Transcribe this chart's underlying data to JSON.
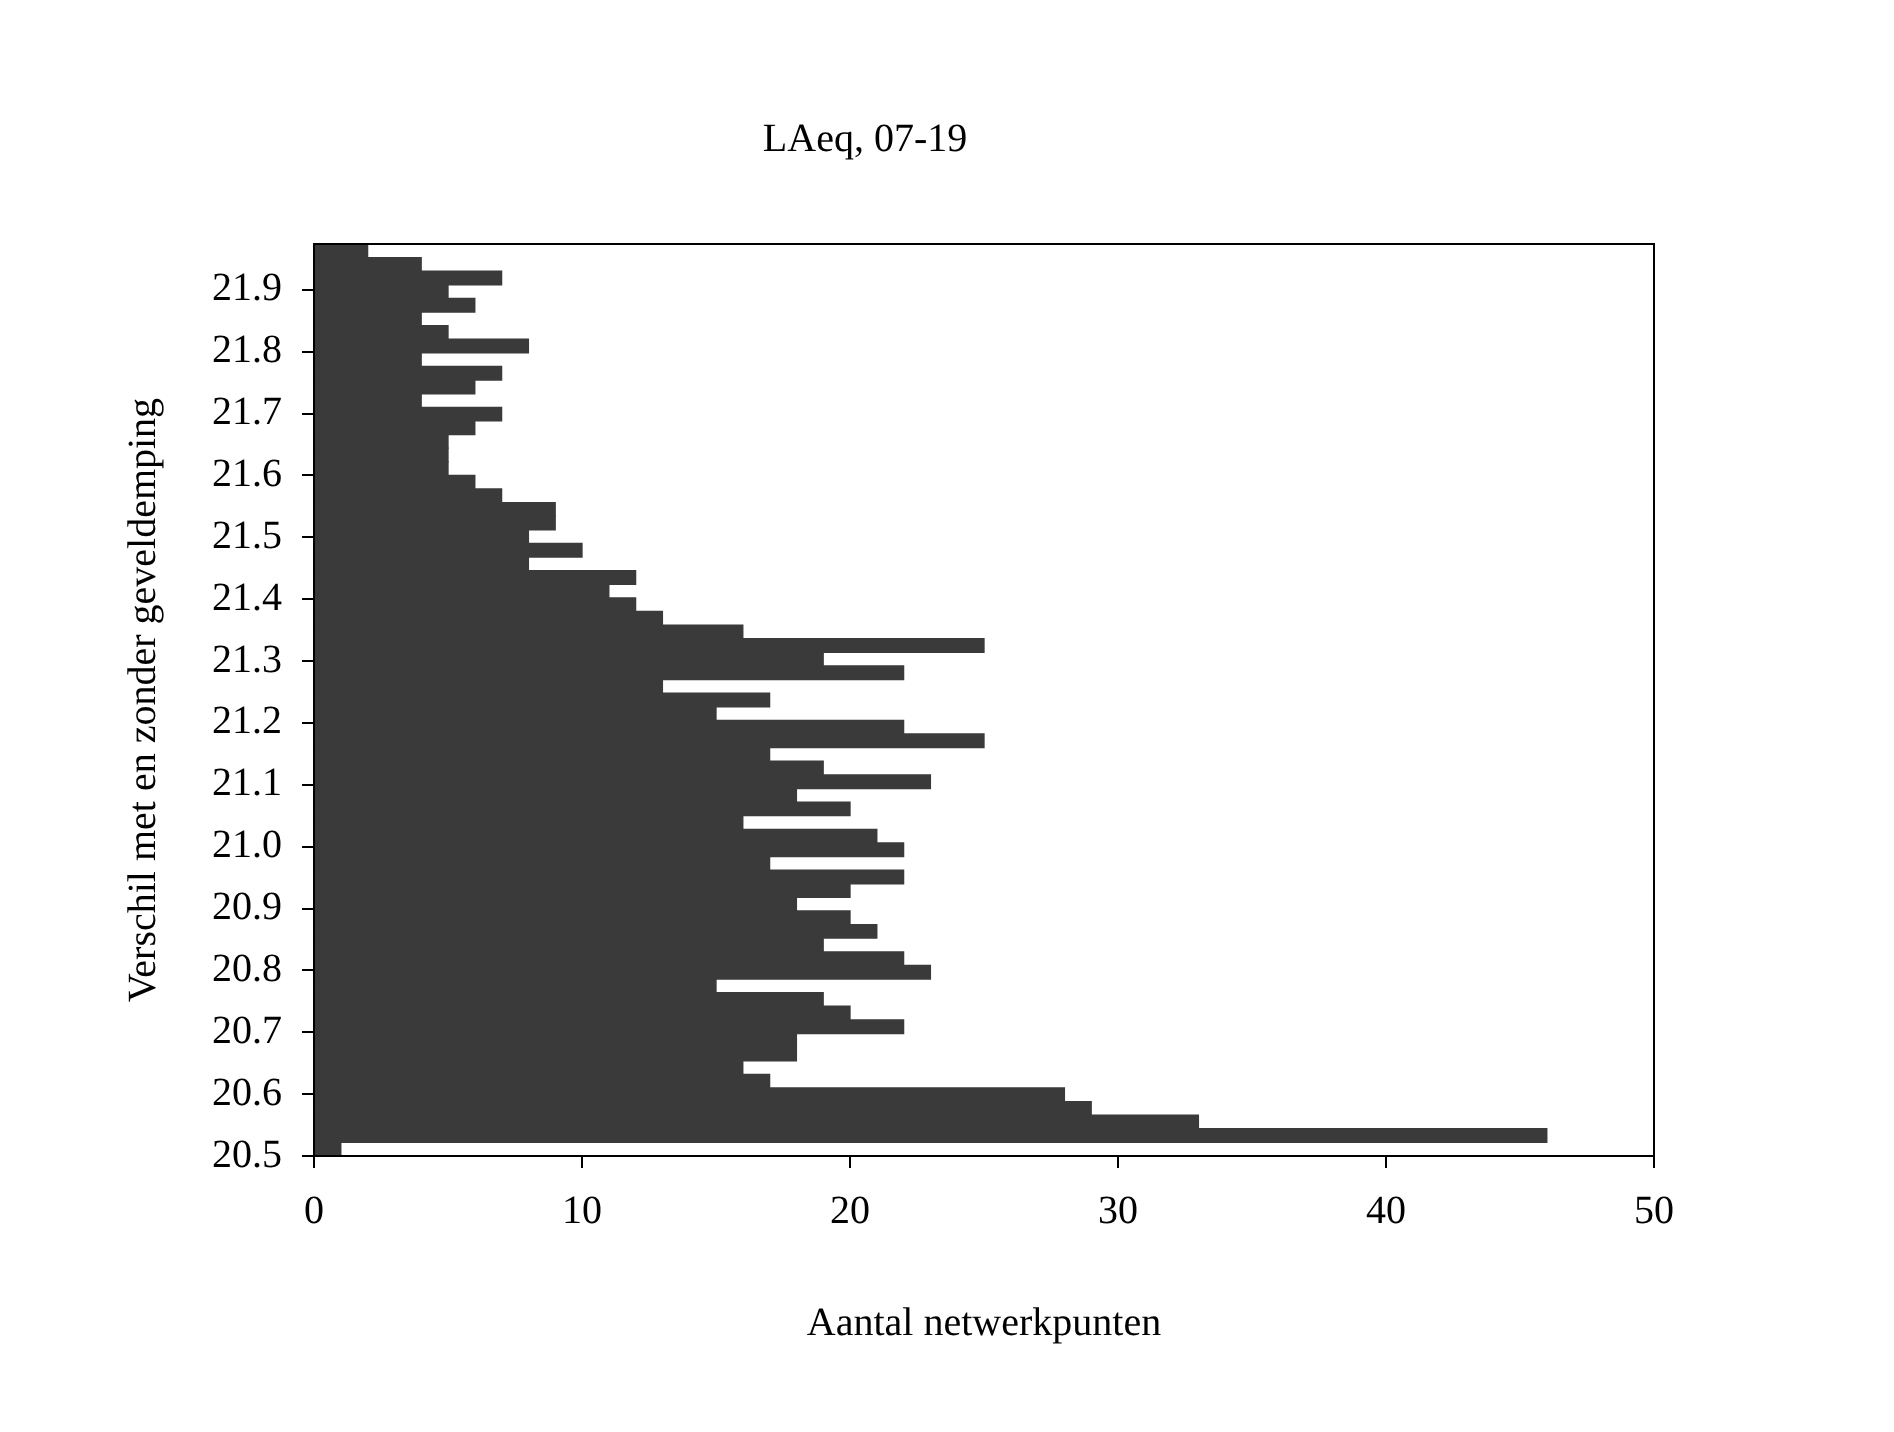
{
  "chart_data": {
    "type": "histogram",
    "orientation": "horizontal",
    "title": "LAeq, 07-19",
    "xlabel": "Aantal netwerkpunten",
    "ylabel": "Verschil met en zonder geveldemping",
    "bins": [
      20.5,
      20.522,
      20.544,
      20.566,
      20.588,
      20.61,
      20.632,
      20.654,
      20.676,
      20.698,
      20.72,
      20.742,
      20.764,
      20.786,
      20.808,
      20.83,
      20.852,
      20.874,
      20.896,
      20.918,
      20.94,
      20.962,
      20.984,
      21.006,
      21.028,
      21.05,
      21.072,
      21.094,
      21.116,
      21.138,
      21.16,
      21.182,
      21.204,
      21.226,
      21.248,
      21.27,
      21.292,
      21.314,
      21.336,
      21.358,
      21.38,
      21.402,
      21.424,
      21.446,
      21.468,
      21.49,
      21.512,
      21.534,
      21.556,
      21.578,
      21.6,
      21.622,
      21.644,
      21.666,
      21.688,
      21.71,
      21.732,
      21.754,
      21.776,
      21.798,
      21.82,
      21.842,
      21.864,
      21.886,
      21.908,
      21.93,
      21.952,
      21.974
    ],
    "values": [
      1,
      46,
      33,
      29,
      28,
      17,
      16,
      18,
      18,
      22,
      20,
      19,
      15,
      23,
      22,
      19,
      21,
      20,
      18,
      20,
      22,
      17,
      22,
      21,
      16,
      20,
      18,
      23,
      19,
      17,
      25,
      22,
      15,
      17,
      13,
      22,
      19,
      25,
      16,
      13,
      12,
      11,
      12,
      8,
      10,
      8,
      9,
      9,
      7,
      6,
      5,
      5,
      5,
      6,
      7,
      4,
      6,
      7,
      4,
      8,
      5,
      4,
      6,
      5,
      7,
      4,
      2
    ],
    "color": "#3a3a3a",
    "xlim": [
      0,
      50
    ],
    "xticks": [
      0,
      10,
      20,
      30,
      40,
      50
    ],
    "ylim": [
      20.5,
      21.974
    ],
    "yticks": [
      {
        "value": 20.5,
        "label": "20.5"
      },
      {
        "value": 20.6,
        "label": "20.6"
      },
      {
        "value": 20.7,
        "label": "20.7"
      },
      {
        "value": 20.8,
        "label": "20.8"
      },
      {
        "value": 20.9,
        "label": "20.9"
      },
      {
        "value": 21,
        "label": "21.0"
      },
      {
        "value": 21.1,
        "label": "21.1"
      },
      {
        "value": 21.2,
        "label": "21.2"
      },
      {
        "value": 21.3,
        "label": "21.3"
      },
      {
        "value": 21.4,
        "label": "21.4"
      },
      {
        "value": 21.5,
        "label": "21.5"
      },
      {
        "value": 21.6,
        "label": "21.6"
      },
      {
        "value": 21.7,
        "label": "21.7"
      },
      {
        "value": 21.8,
        "label": "21.8"
      },
      {
        "value": 21.9,
        "label": "21.9"
      }
    ],
    "grid": false,
    "legend": false
  }
}
